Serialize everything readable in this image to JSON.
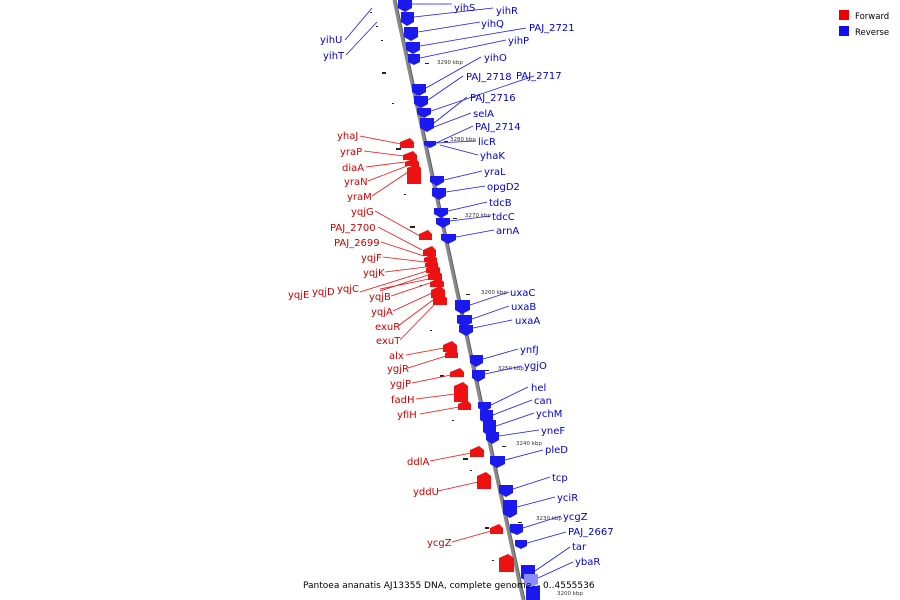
{
  "caption": "Pantoea ananatis AJ13355 DNA, complete genome. - 0..4555536",
  "legend": [
    {
      "label": "Forward",
      "color": "#ee0000"
    },
    {
      "label": "Reverse",
      "color": "#1010ee"
    }
  ],
  "ticks": [
    "3200 kbp",
    "3210 kbp",
    "3220 kbp",
    "3230 kbp",
    "3240 kbp",
    "3250 kbp",
    "3260 kbp",
    "3270 kbp",
    "3280 kbp",
    "3290 kbp"
  ],
  "reverse_genes": [
    "yihS",
    "yihR",
    "yihQ",
    "PAJ_2721",
    "yihP",
    "yihO",
    "PAJ_2718",
    "PAJ_2717",
    "PAJ_2716",
    "selA",
    "PAJ_2714",
    "licR",
    "yhaK",
    "yraL",
    "opgD2",
    "tdcB",
    "tdcC",
    "arnA",
    "uxaC",
    "uxaB",
    "uxaA",
    "ynfJ",
    "ygjO",
    "hel",
    "can",
    "ychM",
    "yneF",
    "pleD",
    "tcp",
    "yciR",
    "ycgZ",
    "PAJ_2667",
    "tar",
    "ybaR"
  ],
  "reverse_side_left": [
    "yihU",
    "yihT"
  ],
  "forward_genes": [
    "yhaJ",
    "yraP",
    "diaA",
    "yraN",
    "yraM",
    "yqjG",
    "PAJ_2700",
    "PAJ_2699",
    "yqjF",
    "yqjK",
    "yqjE",
    "yqjD",
    "yqjC",
    "yqjB",
    "yqjA",
    "exuR",
    "exuT",
    "alx",
    "ygjR",
    "ygjP",
    "fadH",
    "yfiH",
    "ddlA",
    "yddU",
    "ycgZ"
  ]
}
